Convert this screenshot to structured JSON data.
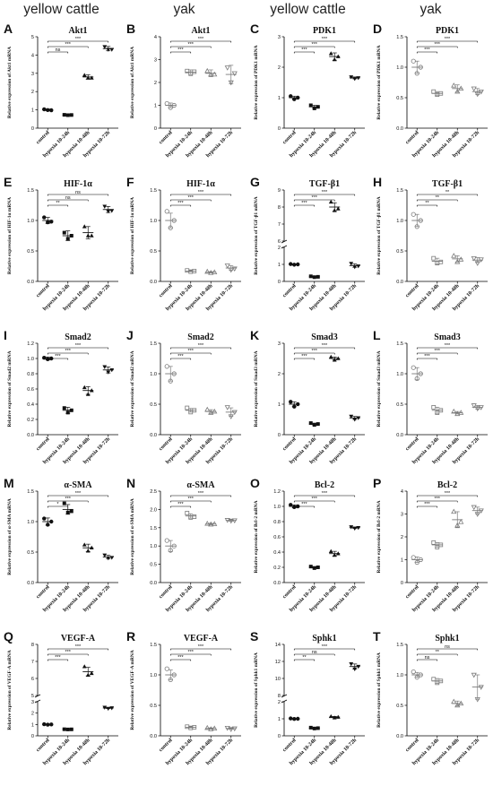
{
  "column_headers": [
    "yellow cattle",
    "yak",
    "yellow cattle",
    "yak"
  ],
  "colors": {
    "cattle": "#111111",
    "yak": "#7a7a7a",
    "line": "#000000",
    "text": "#111111"
  },
  "chart_data": [
    {
      "letter": "A",
      "type": "scatter",
      "title": "Akt1",
      "ylabel": "Relative expression of Akt1 mRNA",
      "ylim": [
        0,
        5
      ],
      "yticks": [
        0,
        1,
        2,
        3,
        4,
        5
      ],
      "categories": [
        "control",
        "hypoxia 10-24h",
        "hypoxia 10-48h",
        "hypoxia 10-72h"
      ],
      "means": [
        1.0,
        0.72,
        2.8,
        4.35
      ],
      "sd": [
        0.05,
        0.03,
        0.12,
        0.12
      ],
      "points": [
        [
          1.03,
          0.99,
          0.98
        ],
        [
          0.73,
          0.71,
          0.72
        ],
        [
          2.9,
          2.75,
          2.75
        ],
        [
          4.45,
          4.3,
          4.3
        ]
      ],
      "sig": [
        [
          "ns"
        ],
        [
          "***"
        ],
        [
          "***"
        ]
      ]
    },
    {
      "letter": "B",
      "type": "scatter",
      "title": "Akt1",
      "ylabel": "Relative expression of Akt1 mRNA",
      "ylim": [
        0,
        4
      ],
      "yticks": [
        0,
        1,
        2,
        3,
        4
      ],
      "categories": [
        "control",
        "hypoxia 10-24h",
        "hypoxia 10-48h",
        "hypoxia 10-72h"
      ],
      "means": [
        1.0,
        2.45,
        2.4,
        2.35
      ],
      "sd": [
        0.1,
        0.1,
        0.15,
        0.4
      ],
      "points": [
        [
          1.08,
          0.9,
          1.0
        ],
        [
          2.5,
          2.38,
          2.47
        ],
        [
          2.5,
          2.35,
          2.35
        ],
        [
          2.65,
          2.0,
          2.4
        ]
      ],
      "sig": [
        [
          "***"
        ],
        [
          "***"
        ],
        [
          "***"
        ]
      ]
    },
    {
      "letter": "C",
      "type": "scatter",
      "title": "PDK1",
      "ylabel": "Relative expression of PDK1 mRNA",
      "ylim": [
        0,
        3
      ],
      "yticks": [
        0,
        1,
        2,
        3
      ],
      "categories": [
        "control",
        "hypoxia 10-24h",
        "hypoxia 10-48h",
        "hypoxia 10-72h"
      ],
      "means": [
        1.0,
        0.7,
        2.35,
        1.65
      ],
      "sd": [
        0.05,
        0.05,
        0.12,
        0.03
      ],
      "points": [
        [
          1.05,
          0.95,
          1.0
        ],
        [
          0.75,
          0.65,
          0.7
        ],
        [
          2.45,
          2.25,
          2.35
        ],
        [
          1.68,
          1.62,
          1.65
        ]
      ],
      "sig": [
        [
          "***"
        ],
        [
          "***"
        ],
        [
          "***"
        ]
      ]
    },
    {
      "letter": "D",
      "type": "scatter",
      "title": "PDK1",
      "ylabel": "Relative expression of PDK1 mRNA",
      "ylim": [
        0,
        1.5
      ],
      "yticks": [
        0.0,
        0.5,
        1.0,
        1.5
      ],
      "categories": [
        "control",
        "hypoxia 10-24h",
        "hypoxia 10-48h",
        "hypoxia 10-72h"
      ],
      "means": [
        1.0,
        0.57,
        0.65,
        0.6
      ],
      "sd": [
        0.1,
        0.03,
        0.06,
        0.05
      ],
      "points": [
        [
          1.1,
          0.9,
          1.0
        ],
        [
          0.6,
          0.55,
          0.57
        ],
        [
          0.7,
          0.6,
          0.65
        ],
        [
          0.65,
          0.56,
          0.6
        ]
      ],
      "sig": [
        [
          "***"
        ],
        [
          "***"
        ],
        [
          "***"
        ]
      ]
    },
    {
      "letter": "E",
      "type": "scatter",
      "title": "HIF-1α",
      "ylabel": "Relative expression of HIF-1α mRNA",
      "ylim": [
        0,
        1.5
      ],
      "yticks": [
        0.0,
        0.5,
        1.0,
        1.5
      ],
      "categories": [
        "control",
        "hypoxia 10-24h",
        "hypoxia 10-48h",
        "hypoxia 10-72h"
      ],
      "means": [
        1.0,
        0.75,
        0.8,
        1.18
      ],
      "sd": [
        0.05,
        0.08,
        0.1,
        0.05
      ],
      "points": [
        [
          1.05,
          0.97,
          0.98
        ],
        [
          0.8,
          0.7,
          0.75
        ],
        [
          0.9,
          0.75,
          0.75
        ],
        [
          1.23,
          1.15,
          1.16
        ]
      ],
      "sig": [
        [
          "**"
        ],
        [
          "ns"
        ],
        [
          "ns"
        ]
      ]
    },
    {
      "letter": "F",
      "type": "scatter",
      "title": "HIF-1α",
      "ylabel": "Relative expression of HIF-1α mRNA",
      "ylim": [
        0,
        1.5
      ],
      "yticks": [
        0.0,
        0.5,
        1.0,
        1.5
      ],
      "categories": [
        "control",
        "hypoxia 10-24h",
        "hypoxia 10-48h",
        "hypoxia 10-72h"
      ],
      "means": [
        1.0,
        0.17,
        0.15,
        0.22
      ],
      "sd": [
        0.12,
        0.01,
        0.01,
        0.04
      ],
      "points": [
        [
          1.15,
          0.88,
          1.0
        ],
        [
          0.18,
          0.16,
          0.17
        ],
        [
          0.16,
          0.14,
          0.15
        ],
        [
          0.26,
          0.19,
          0.21
        ]
      ],
      "sig": [
        [
          "***"
        ],
        [
          "***"
        ],
        [
          "***"
        ]
      ]
    },
    {
      "letter": "G",
      "type": "scatter",
      "title": "TGF-β1",
      "ylabel": "Relative expression of TGF-β1 mRNA",
      "ylim": [
        0,
        9
      ],
      "yticks": [
        0,
        1,
        2,
        6,
        7,
        8,
        9
      ],
      "ybreak": [
        2,
        6
      ],
      "categories": [
        "control",
        "hypoxia 10-24h",
        "hypoxia 10-48h",
        "hypoxia 10-72h"
      ],
      "means": [
        1.0,
        0.27,
        8.0,
        0.93
      ],
      "sd": [
        0.03,
        0.03,
        0.25,
        0.1
      ],
      "points": [
        [
          1.02,
          0.98,
          1.0
        ],
        [
          0.3,
          0.25,
          0.27
        ],
        [
          8.3,
          7.8,
          7.9
        ],
        [
          1.05,
          0.85,
          0.9
        ]
      ],
      "sig": [
        [
          "***"
        ],
        [
          "***"
        ],
        [
          "***"
        ]
      ]
    },
    {
      "letter": "H",
      "type": "scatter",
      "title": "TGF-β1",
      "ylabel": "Relative expression of TGF-β1 mRNA",
      "ylim": [
        0,
        1.5
      ],
      "yticks": [
        0.0,
        0.5,
        1.0,
        1.5
      ],
      "categories": [
        "control",
        "hypoxia 10-24h",
        "hypoxia 10-48h",
        "hypoxia 10-72h"
      ],
      "means": [
        1.0,
        0.33,
        0.37,
        0.35
      ],
      "sd": [
        0.1,
        0.05,
        0.05,
        0.04
      ],
      "points": [
        [
          1.1,
          0.9,
          1.0
        ],
        [
          0.38,
          0.3,
          0.32
        ],
        [
          0.42,
          0.32,
          0.36
        ],
        [
          0.38,
          0.3,
          0.36
        ]
      ],
      "sig": [
        [
          "**"
        ],
        [
          "**"
        ],
        [
          "**"
        ]
      ]
    },
    {
      "letter": "I",
      "type": "scatter",
      "title": "Smad2",
      "ylabel": "Relative expression of Smad2 mRNA",
      "ylim": [
        0,
        1.2
      ],
      "yticks": [
        0.0,
        0.2,
        0.4,
        0.6,
        0.8,
        1.0,
        1.2
      ],
      "categories": [
        "control",
        "hypoxia 10-24h",
        "hypoxia 10-48h",
        "hypoxia 10-72h"
      ],
      "means": [
        1.0,
        0.32,
        0.58,
        0.85
      ],
      "sd": [
        0.02,
        0.04,
        0.05,
        0.04
      ],
      "points": [
        [
          1.01,
          0.99,
          1.0
        ],
        [
          0.35,
          0.29,
          0.32
        ],
        [
          0.62,
          0.53,
          0.58
        ],
        [
          0.89,
          0.82,
          0.85
        ]
      ],
      "sig": [
        [
          "***"
        ],
        [
          "***"
        ],
        [
          "***"
        ]
      ]
    },
    {
      "letter": "J",
      "type": "scatter",
      "title": "Smad2",
      "ylabel": "Relative expression of Smad2 mRNA",
      "ylim": [
        0,
        1.5
      ],
      "yticks": [
        0.0,
        0.5,
        1.0,
        1.5
      ],
      "categories": [
        "control",
        "hypoxia 10-24h",
        "hypoxia 10-48h",
        "hypoxia 10-72h"
      ],
      "means": [
        1.0,
        0.4,
        0.38,
        0.37
      ],
      "sd": [
        0.12,
        0.03,
        0.03,
        0.07
      ],
      "points": [
        [
          1.12,
          0.88,
          1.0
        ],
        [
          0.44,
          0.37,
          0.4
        ],
        [
          0.41,
          0.36,
          0.38
        ],
        [
          0.45,
          0.3,
          0.37
        ]
      ],
      "sig": [
        [
          "***"
        ],
        [
          "***"
        ],
        [
          "***"
        ]
      ]
    },
    {
      "letter": "K",
      "type": "scatter",
      "title": "Smad3",
      "ylabel": "Relative expression of Smad3 mRNA",
      "ylim": [
        0,
        3
      ],
      "yticks": [
        0,
        1,
        2,
        3
      ],
      "categories": [
        "control",
        "hypoxia 10-24h",
        "hypoxia 10-48h",
        "hypoxia 10-72h"
      ],
      "means": [
        1.0,
        0.35,
        2.5,
        0.55
      ],
      "sd": [
        0.08,
        0.03,
        0.05,
        0.05
      ],
      "points": [
        [
          1.08,
          0.92,
          1.0
        ],
        [
          0.38,
          0.32,
          0.35
        ],
        [
          2.55,
          2.45,
          2.5
        ],
        [
          0.6,
          0.5,
          0.55
        ]
      ],
      "sig": [
        [
          "***"
        ],
        [
          "***"
        ],
        [
          "***"
        ]
      ]
    },
    {
      "letter": "L",
      "type": "scatter",
      "title": "Smad3",
      "ylabel": "Relative expression of Smad3 mRNA",
      "ylim": [
        0,
        1.5
      ],
      "yticks": [
        0.0,
        0.5,
        1.0,
        1.5
      ],
      "categories": [
        "control",
        "hypoxia 10-24h",
        "hypoxia 10-48h",
        "hypoxia 10-72h"
      ],
      "means": [
        1.0,
        0.4,
        0.36,
        0.45
      ],
      "sd": [
        0.1,
        0.05,
        0.02,
        0.03
      ],
      "points": [
        [
          1.1,
          0.92,
          1.0
        ],
        [
          0.45,
          0.36,
          0.4
        ],
        [
          0.38,
          0.34,
          0.36
        ],
        [
          0.48,
          0.43,
          0.45
        ]
      ],
      "sig": [
        [
          "***"
        ],
        [
          "***"
        ],
        [
          "***"
        ]
      ]
    },
    {
      "letter": "M",
      "type": "scatter",
      "title": "α-SMA",
      "ylabel": "Relative expression of α-SMA mRNA",
      "ylim": [
        0,
        1.5
      ],
      "yticks": [
        0.0,
        0.5,
        1.0,
        1.5
      ],
      "categories": [
        "control",
        "hypoxia 10-24h",
        "hypoxia 10-48h",
        "hypoxia 10-72h"
      ],
      "means": [
        1.0,
        1.2,
        0.57,
        0.42
      ],
      "sd": [
        0.06,
        0.08,
        0.06,
        0.03
      ],
      "points": [
        [
          1.05,
          0.95,
          1.0
        ],
        [
          1.3,
          1.15,
          1.17
        ],
        [
          0.62,
          0.52,
          0.57
        ],
        [
          0.45,
          0.4,
          0.41
        ]
      ],
      "sig": [
        [
          "*"
        ],
        [
          "***"
        ],
        [
          "***"
        ]
      ]
    },
    {
      "letter": "N",
      "type": "scatter",
      "title": "α-SMA",
      "ylabel": "Relative expression of α-SMA mRNA",
      "ylim": [
        0,
        2.5
      ],
      "yticks": [
        0.0,
        0.5,
        1.0,
        1.5,
        2.0,
        2.5
      ],
      "categories": [
        "control",
        "hypoxia 10-24h",
        "hypoxia 10-48h",
        "hypoxia 10-72h"
      ],
      "means": [
        1.0,
        1.82,
        1.6,
        1.7
      ],
      "sd": [
        0.15,
        0.06,
        0.02,
        0.02
      ],
      "points": [
        [
          1.15,
          0.88,
          1.0
        ],
        [
          1.9,
          1.78,
          1.8
        ],
        [
          1.61,
          1.59,
          1.6
        ],
        [
          1.71,
          1.69,
          1.7
        ]
      ],
      "sig": [
        [
          "***"
        ],
        [
          "***"
        ],
        [
          "***"
        ]
      ]
    },
    {
      "letter": "O",
      "type": "scatter",
      "title": "Bcl-2",
      "ylabel": "Relative expression of Bcl-2 mRNA",
      "ylim": [
        0,
        1.2
      ],
      "yticks": [
        0.0,
        0.2,
        0.4,
        0.6,
        0.8,
        1.0,
        1.2
      ],
      "categories": [
        "control",
        "hypoxia 10-24h",
        "hypoxia 10-48h",
        "hypoxia 10-72h"
      ],
      "means": [
        1.0,
        0.2,
        0.38,
        0.72
      ],
      "sd": [
        0.02,
        0.01,
        0.03,
        0.01
      ],
      "points": [
        [
          1.02,
          0.99,
          1.0
        ],
        [
          0.21,
          0.19,
          0.2
        ],
        [
          0.41,
          0.36,
          0.38
        ],
        [
          0.73,
          0.71,
          0.72
        ]
      ],
      "sig": [
        [
          "***"
        ],
        [
          "***"
        ],
        [
          "***"
        ]
      ]
    },
    {
      "letter": "P",
      "type": "scatter",
      "title": "Bcl-2",
      "ylabel": "Relative expression of Bcl-2 mRNA",
      "ylim": [
        0,
        4
      ],
      "yticks": [
        0,
        1,
        2,
        3,
        4
      ],
      "categories": [
        "control",
        "hypoxia 10-24h",
        "hypoxia 10-48h",
        "hypoxia 10-72h"
      ],
      "means": [
        1.0,
        1.65,
        2.75,
        3.15
      ],
      "sd": [
        0.12,
        0.1,
        0.35,
        0.15
      ],
      "points": [
        [
          1.1,
          0.88,
          1.0
        ],
        [
          1.75,
          1.55,
          1.65
        ],
        [
          3.1,
          2.5,
          2.65
        ],
        [
          3.3,
          3.0,
          3.15
        ]
      ],
      "sig": [
        [
          "***"
        ],
        [
          "***"
        ],
        [
          "***"
        ]
      ]
    },
    {
      "letter": "Q",
      "type": "scatter",
      "title": "VEGF-A",
      "ylabel": "Relative expression of VEGF-A mRNA",
      "ylim": [
        0,
        8
      ],
      "yticks": [
        0,
        1,
        2,
        3,
        5,
        6,
        7,
        8
      ],
      "ybreak": [
        3,
        5
      ],
      "categories": [
        "control",
        "hypoxia 10-24h",
        "hypoxia 10-48h",
        "hypoxia 10-72h"
      ],
      "means": [
        1.0,
        0.57,
        6.4,
        2.45
      ],
      "sd": [
        0.03,
        0.02,
        0.25,
        0.05
      ],
      "points": [
        [
          1.02,
          0.98,
          1.0
        ],
        [
          0.58,
          0.56,
          0.57
        ],
        [
          6.7,
          6.2,
          6.3
        ],
        [
          2.5,
          2.4,
          2.45
        ]
      ],
      "sig": [
        [
          "***"
        ],
        [
          "***"
        ],
        [
          "***"
        ]
      ]
    },
    {
      "letter": "R",
      "type": "scatter",
      "title": "VEGF-A",
      "ylabel": "Relative expression of VEGF-A mRNA",
      "ylim": [
        0,
        1.5
      ],
      "yticks": [
        0.0,
        0.5,
        1.0,
        1.5
      ],
      "categories": [
        "control",
        "hypoxia 10-24h",
        "hypoxia 10-48h",
        "hypoxia 10-72h"
      ],
      "means": [
        1.0,
        0.14,
        0.12,
        0.12
      ],
      "sd": [
        0.08,
        0.01,
        0.01,
        0.01
      ],
      "points": [
        [
          1.1,
          0.92,
          1.0
        ],
        [
          0.15,
          0.13,
          0.14
        ],
        [
          0.13,
          0.11,
          0.12
        ],
        [
          0.13,
          0.11,
          0.12
        ]
      ],
      "sig": [
        [
          "***"
        ],
        [
          "***"
        ],
        [
          "***"
        ]
      ]
    },
    {
      "letter": "S",
      "type": "scatter",
      "title": "Sphk1",
      "ylabel": "Relative expression of Sphk1 mRNA",
      "ylim": [
        0,
        14
      ],
      "yticks": [
        0,
        1,
        2,
        8,
        10,
        12,
        14
      ],
      "ybreak": [
        2,
        8
      ],
      "categories": [
        "control",
        "hypoxia 10-24h",
        "hypoxia 10-48h",
        "hypoxia 10-72h"
      ],
      "means": [
        1.0,
        0.45,
        1.1,
        11.4
      ],
      "sd": [
        0.02,
        0.03,
        0.04,
        0.3
      ],
      "points": [
        [
          1.02,
          0.99,
          1.0
        ],
        [
          0.48,
          0.43,
          0.45
        ],
        [
          1.14,
          1.06,
          1.1
        ],
        [
          11.7,
          11.1,
          11.4
        ]
      ],
      "sig": [
        [
          "**"
        ],
        [
          "ns"
        ],
        [
          "***"
        ]
      ]
    },
    {
      "letter": "T",
      "type": "scatter",
      "title": "Sphk1",
      "ylabel": "Relative expression of Sphk1 mRNA",
      "ylim": [
        0,
        1.5
      ],
      "yticks": [
        0.0,
        0.5,
        1.0,
        1.5
      ],
      "categories": [
        "control",
        "hypoxia 10-24h",
        "hypoxia 10-48h",
        "hypoxia 10-72h"
      ],
      "means": [
        1.0,
        0.9,
        0.53,
        0.8
      ],
      "sd": [
        0.04,
        0.04,
        0.04,
        0.2
      ],
      "points": [
        [
          1.05,
          0.96,
          1.0
        ],
        [
          0.93,
          0.87,
          0.9
        ],
        [
          0.56,
          0.5,
          0.53
        ],
        [
          1.0,
          0.6,
          0.8
        ]
      ],
      "sig": [
        [
          "ns"
        ],
        [
          "**"
        ],
        [
          "ns"
        ]
      ]
    }
  ]
}
